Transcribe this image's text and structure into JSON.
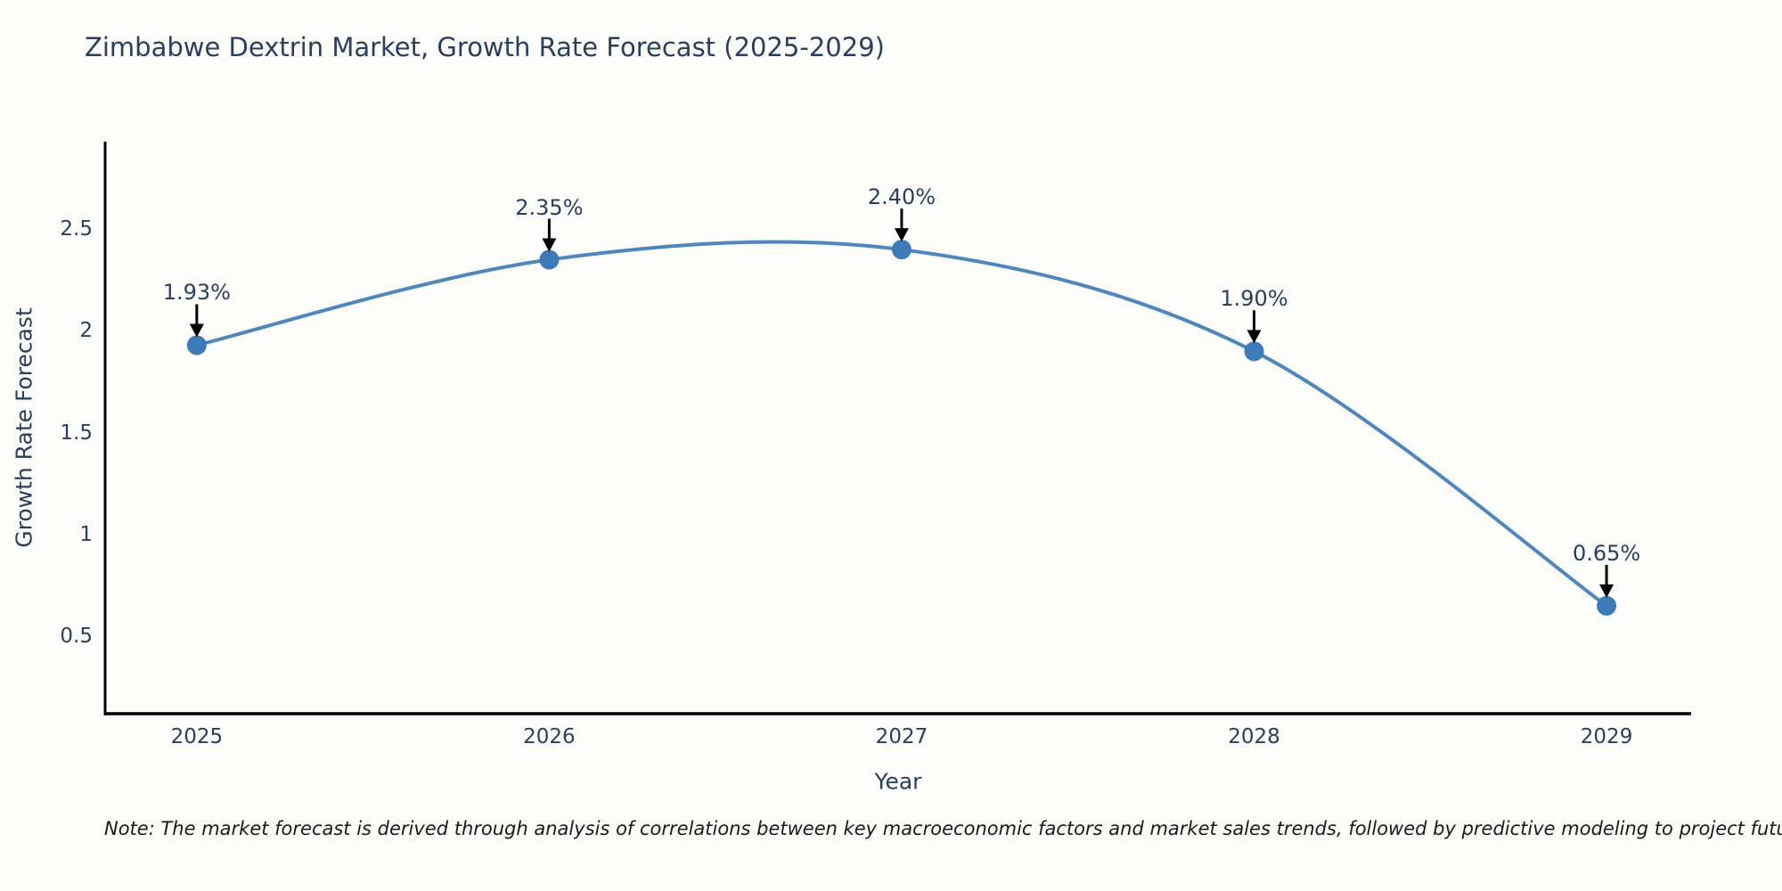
{
  "note": "Note: The market forecast is derived through analysis of correlations between key macroeconomic factors and market sales trends, followed by predictive modeling to project future sales",
  "chart_data": {
    "type": "line",
    "title": "Zimbabwe Dextrin Market, Growth Rate Forecast (2025-2029)",
    "x": [
      "2025",
      "2026",
      "2027",
      "2028",
      "2029"
    ],
    "x_values": [
      2025,
      2026,
      2027,
      2028,
      2029
    ],
    "values": [
      1.93,
      2.35,
      2.4,
      1.9,
      0.65
    ],
    "labels": [
      "1.93%",
      "2.35%",
      "2.40%",
      "1.90%",
      "0.65%"
    ],
    "xlabel": "Year",
    "ylabel": "Growth Rate Forecast",
    "yticks": [
      "0.5",
      "1",
      "1.5",
      "2",
      "2.5"
    ],
    "ylim": [
      0.12,
      2.93
    ],
    "xlim": [
      2024.74,
      2029.24
    ],
    "line_shape": "spline",
    "grid": false,
    "legend": "none",
    "colors": {
      "line": "#4d87be",
      "marker": "#3d7ab8",
      "arrow": "#000000",
      "axis": "#000000",
      "text": "#2a3f5f"
    }
  }
}
